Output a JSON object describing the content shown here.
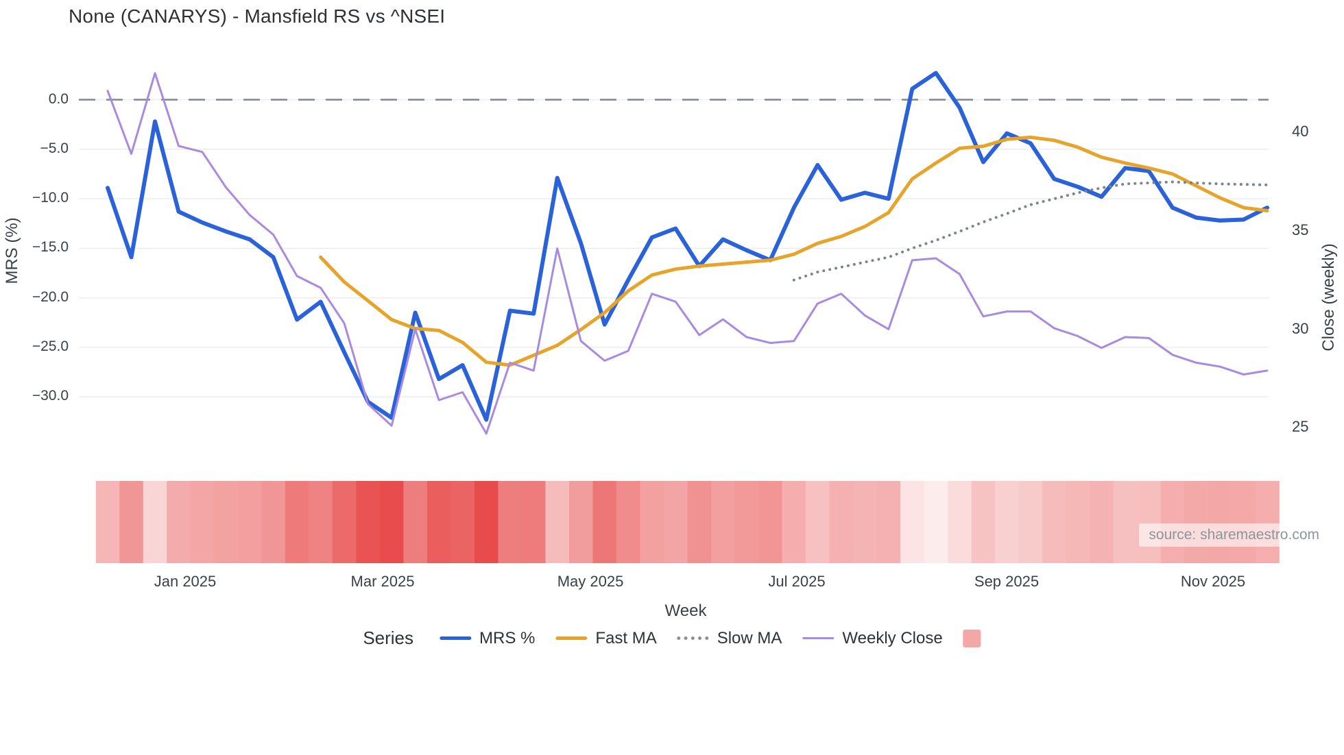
{
  "title": "None (CANARYS) - Mansfield RS vs ^NSEI",
  "source_note": "source: sharemaestro.com",
  "legend": {
    "title": "Series",
    "entries": [
      {
        "label": "MRS %",
        "swatch": "line",
        "color": "#2a62d9"
      },
      {
        "label": "Fast MA",
        "swatch": "line",
        "color": "#e6a42b"
      },
      {
        "label": "Slow MA",
        "swatch": "dotted",
        "color": "#8a9097"
      },
      {
        "label": "Weekly Close",
        "swatch": "line-thin",
        "color": "#a88ae3"
      },
      {
        "label": "",
        "swatch": "square",
        "color": "#f4a7a7"
      }
    ]
  },
  "chart_data": {
    "type": "line",
    "title": "None (CANARYS) - Mansfield RS vs ^NSEI",
    "xlabel": "Week",
    "ylabel_left": "MRS (%)",
    "ylabel_right": "Close (weekly)",
    "grid": "horizontal",
    "legend_position": "bottom",
    "zero_line": true,
    "x_tick_labels": [
      "Jan 2025",
      "Mar 2025",
      "May 2025",
      "Jul 2025",
      "Sep 2025",
      "Nov 2025"
    ],
    "left_ticks": [
      0,
      -5,
      -10,
      -15,
      -20,
      -25,
      -30
    ],
    "left_tick_labels": [
      "0.0",
      "−5.0",
      "−10.0",
      "−15.0",
      "−20.0",
      "−25.0",
      "−30.0"
    ],
    "right_ticks": [
      40,
      35,
      30,
      25
    ],
    "right_tick_labels": [
      "40",
      "35",
      "30",
      "25"
    ],
    "ylim_left": [
      -35.5,
      5.0
    ],
    "ylim_right": [
      23.8,
      44.2
    ],
    "x": [
      "2024-12-09",
      "2024-12-16",
      "2024-12-23",
      "2024-12-30",
      "2025-01-06",
      "2025-01-13",
      "2025-01-20",
      "2025-01-27",
      "2025-02-03",
      "2025-02-10",
      "2025-02-17",
      "2025-02-24",
      "2025-03-03",
      "2025-03-10",
      "2025-03-17",
      "2025-03-24",
      "2025-03-31",
      "2025-04-07",
      "2025-04-14",
      "2025-04-21",
      "2025-04-28",
      "2025-05-05",
      "2025-05-12",
      "2025-05-19",
      "2025-05-26",
      "2025-06-02",
      "2025-06-09",
      "2025-06-16",
      "2025-06-23",
      "2025-06-30",
      "2025-07-07",
      "2025-07-14",
      "2025-07-21",
      "2025-07-28",
      "2025-08-04",
      "2025-08-11",
      "2025-08-18",
      "2025-08-25",
      "2025-09-01",
      "2025-09-08",
      "2025-09-15",
      "2025-09-22",
      "2025-09-29",
      "2025-10-06",
      "2025-10-13",
      "2025-10-20",
      "2025-10-27",
      "2025-11-03",
      "2025-11-10",
      "2025-11-17"
    ],
    "series": [
      {
        "name": "MRS %",
        "yaxis": "left",
        "color": "#2a62d9",
        "dash": "solid",
        "width": 6,
        "values": [
          -8.9,
          -15.9,
          -2.2,
          -11.3,
          -12.4,
          -13.3,
          -14.1,
          -15.9,
          -22.2,
          -20.4,
          -25.5,
          -30.5,
          -32.1,
          -21.5,
          -28.2,
          -26.8,
          -32.3,
          -21.3,
          -21.6,
          -7.9,
          -14.5,
          -22.7,
          -18.2,
          -13.9,
          -13.0,
          -16.8,
          -14.1,
          -15.2,
          -16.2,
          -10.9,
          -6.6,
          -10.1,
          -9.4,
          -10.0,
          1.1,
          2.7,
          -0.8,
          -6.3,
          -3.4,
          -4.4,
          -8.0,
          -8.8,
          -9.8,
          -6.9,
          -7.2,
          -10.9,
          -11.9,
          -12.2,
          -12.1,
          -10.9
        ]
      },
      {
        "name": "Fast MA",
        "yaxis": "left",
        "color": "#e6a42b",
        "dash": "solid",
        "width": 5,
        "values": [
          null,
          null,
          null,
          null,
          null,
          null,
          null,
          null,
          null,
          -15.9,
          -18.4,
          -20.3,
          -22.2,
          -23.1,
          -23.3,
          -24.5,
          -26.5,
          -26.8,
          -25.8,
          -24.8,
          -23.2,
          -21.5,
          -19.3,
          -17.7,
          -17.1,
          -16.8,
          -16.6,
          -16.4,
          -16.2,
          -15.6,
          -14.5,
          -13.8,
          -12.8,
          -11.4,
          -8.0,
          -6.4,
          -4.9,
          -4.7,
          -4.0,
          -3.8,
          -4.1,
          -4.8,
          -5.8,
          -6.4,
          -6.9,
          -7.5,
          -8.7,
          -9.9,
          -10.9,
          -11.2
        ]
      },
      {
        "name": "Slow MA",
        "yaxis": "left",
        "color": "#7d838c",
        "dash": "dotted",
        "width": 4,
        "values": [
          null,
          null,
          null,
          null,
          null,
          null,
          null,
          null,
          null,
          null,
          null,
          null,
          null,
          null,
          null,
          null,
          null,
          null,
          null,
          null,
          null,
          null,
          null,
          null,
          null,
          null,
          null,
          null,
          null,
          -18.2,
          -17.4,
          -16.9,
          -16.4,
          -15.9,
          -15.0,
          -14.2,
          -13.3,
          -12.35,
          -11.5,
          -10.6,
          -10.0,
          -9.4,
          -8.9,
          -8.5,
          -8.4,
          -8.3,
          -8.4,
          -8.5,
          -8.55,
          -8.6
        ]
      },
      {
        "name": "Weekly Close",
        "yaxis": "right",
        "color": "#a88ae3",
        "dash": "solid",
        "width": 3,
        "values": [
          42.1,
          38.9,
          43.0,
          39.3,
          39.0,
          37.2,
          35.8,
          34.8,
          32.7,
          32.1,
          30.3,
          26.2,
          25.1,
          30.0,
          26.4,
          26.8,
          24.7,
          28.3,
          27.9,
          34.1,
          29.4,
          28.4,
          28.9,
          31.8,
          31.4,
          29.7,
          30.5,
          29.6,
          29.3,
          29.4,
          31.3,
          31.8,
          30.7,
          30.0,
          33.5,
          33.6,
          32.8,
          30.65,
          30.9,
          30.9,
          30.05,
          29.65,
          29.05,
          29.6,
          29.55,
          28.7,
          28.3,
          28.1,
          27.7,
          27.9
        ]
      }
    ],
    "heatmap_strip": {
      "based_on": "MRS %",
      "light_color": "#fdeded",
      "dark_color": "#e74848",
      "value_domain": [
        3,
        -33
      ]
    }
  }
}
